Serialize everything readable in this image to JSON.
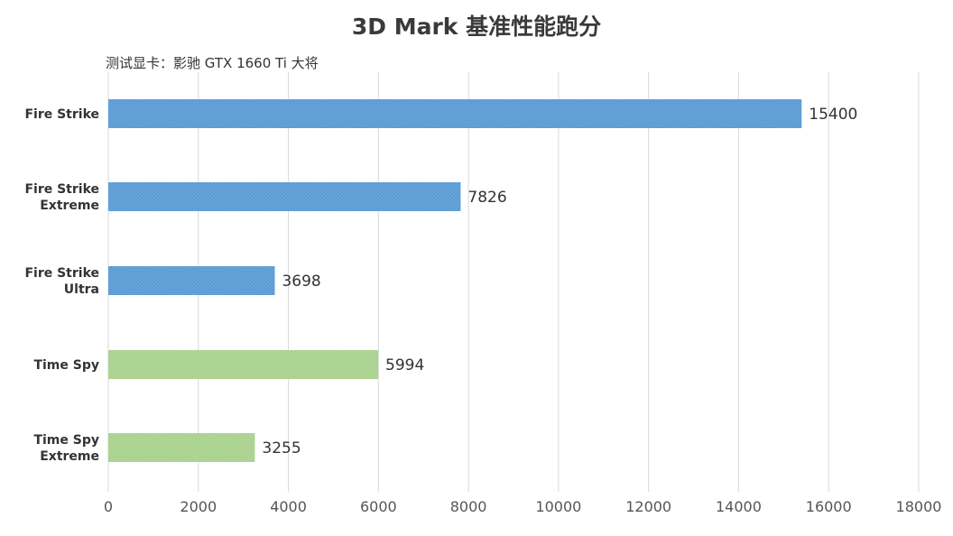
{
  "chart_data": {
    "type": "bar",
    "orientation": "horizontal",
    "title": "3D Mark 基准性能跑分",
    "subtitle": "测试显卡：影驰 GTX 1660 Ti 大将",
    "categories": [
      [
        "Fire Strike"
      ],
      [
        "Fire Strike",
        "Extreme"
      ],
      [
        "Fire Strike",
        "Ultra"
      ],
      [
        "Time Spy"
      ],
      [
        "Time Spy",
        "Extreme"
      ]
    ],
    "values": [
      15400,
      7826,
      3698,
      5994,
      3255
    ],
    "value_labels": [
      "15400",
      "7826",
      "3698",
      "5994",
      "3255"
    ],
    "bar_colors": [
      "#5b9bd5",
      "#5b9bd5",
      "#5b9bd5",
      "#a9d18e",
      "#a9d18e"
    ],
    "xlim": [
      0,
      18000
    ],
    "xticks": [
      0,
      2000,
      4000,
      6000,
      8000,
      10000,
      12000,
      14000,
      16000,
      18000
    ],
    "xtick_labels": [
      "0",
      "2000",
      "4000",
      "6000",
      "8000",
      "10000",
      "12000",
      "14000",
      "16000",
      "18000"
    ],
    "xlabel": "",
    "ylabel": "",
    "grid": "vertical",
    "legend": "none"
  }
}
